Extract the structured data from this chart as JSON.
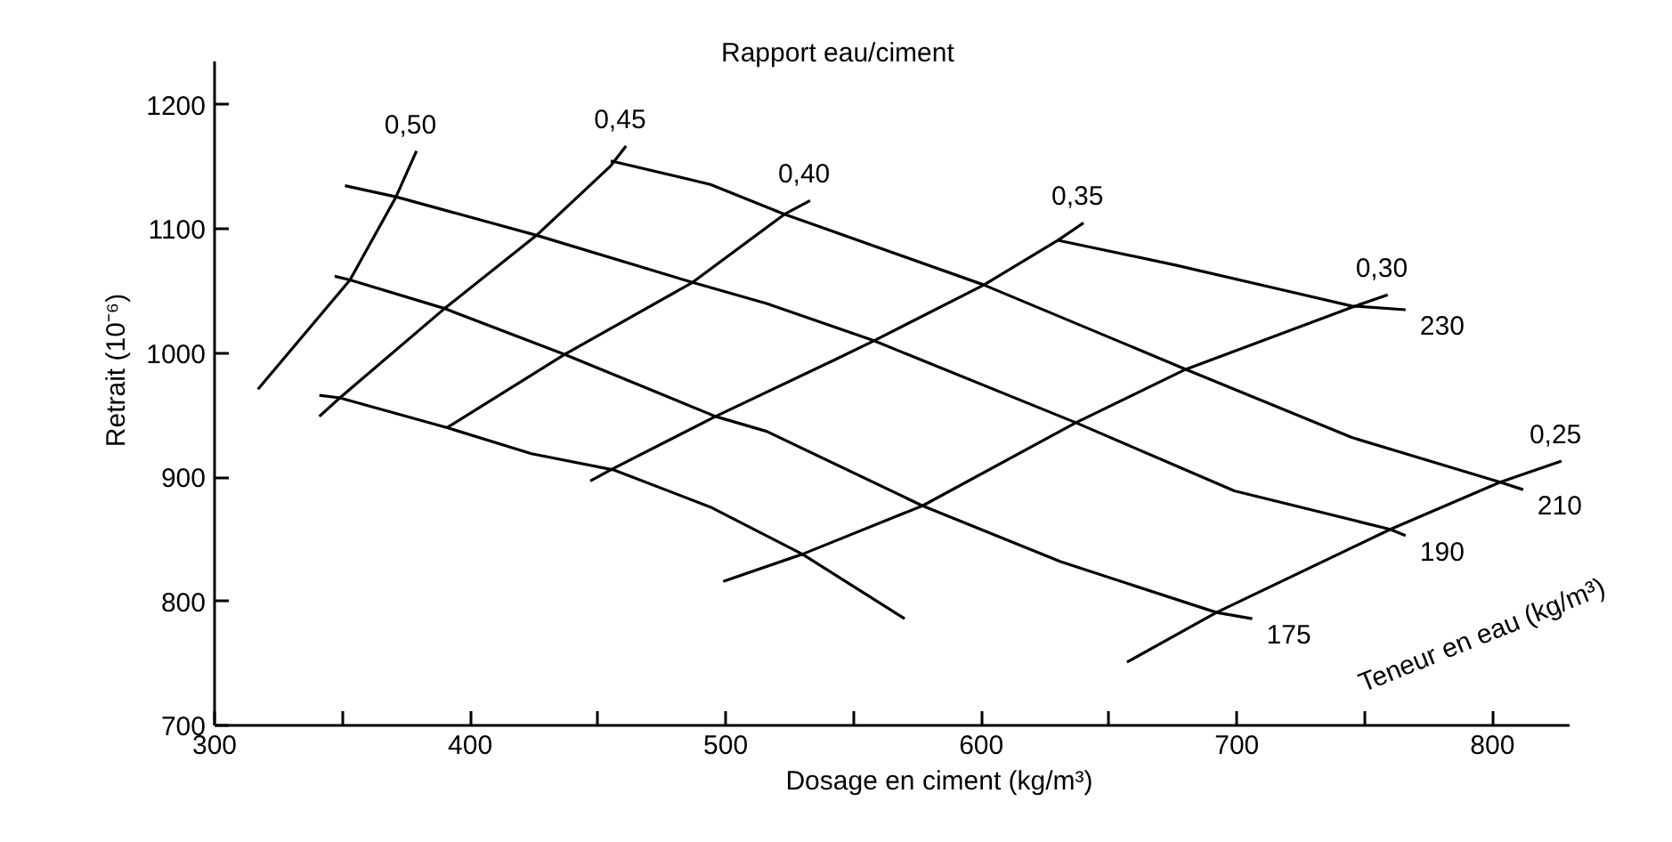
{
  "chart_data": {
    "type": "line",
    "xlabel": "Dosage en ciment (kg/m³)",
    "ylabel": "Retrait (10⁻⁶)",
    "annotations": [
      "Rapport eau/ciment",
      "Teneur en eau (kg/m³)"
    ],
    "xlim": [
      300,
      830
    ],
    "ylim": [
      700,
      1235
    ],
    "xticks": [
      300,
      {
        "value": 350,
        "label": null
      },
      400,
      {
        "value": 450,
        "label": null
      },
      500,
      {
        "value": 550,
        "label": null
      },
      600,
      {
        "value": 650,
        "label": null
      },
      700,
      {
        "value": 750,
        "label": null
      },
      800
    ],
    "yticks": [
      700,
      800,
      900,
      1000,
      1100,
      1200
    ],
    "grid": false,
    "legend": false,
    "marker": "none",
    "line_style": "solid",
    "series": [
      {
        "name": "0,50",
        "color": "#000000",
        "x": [
          317,
          353,
          371,
          379
        ],
        "values": [
          971,
          1059,
          1126,
          1163
        ]
      },
      {
        "name": "0,45",
        "color": "#000000",
        "x": [
          341,
          349,
          390,
          426,
          455,
          461
        ],
        "values": [
          949,
          964,
          1036,
          1095,
          1151,
          1167
        ]
      },
      {
        "name": "0,40",
        "color": "#000000",
        "x": [
          391,
          437,
          487,
          523,
          533
        ],
        "values": [
          940,
          999,
          1057,
          1112,
          1123
        ]
      },
      {
        "name": "0,35",
        "color": "#000000",
        "x": [
          447,
          455,
          496,
          543,
          558,
          601,
          630,
          640
        ],
        "values": [
          897,
          906,
          949,
          995,
          1010,
          1055,
          1091,
          1105
        ]
      },
      {
        "name": "0,30",
        "color": "#000000",
        "x": [
          499,
          530,
          577,
          637,
          680,
          745,
          759
        ],
        "values": [
          816,
          838,
          877,
          944,
          987,
          1037,
          1047
        ]
      },
      {
        "name": "0,25",
        "color": "#000000",
        "x": [
          657,
          692,
          760,
          803,
          827
        ],
        "values": [
          751,
          791,
          858,
          896,
          913
        ]
      },
      {
        "name": "230",
        "color": "#000000",
        "x": [
          630,
          676,
          722,
          745,
          766
        ],
        "values": [
          1091,
          1071,
          1049,
          1038,
          1035
        ]
      },
      {
        "name": "210",
        "color": "#000000",
        "x": [
          455,
          494,
          523,
          601,
          680,
          745,
          803,
          812
        ],
        "values": [
          1155,
          1136,
          1112,
          1055,
          987,
          932,
          896,
          890
        ]
      },
      {
        "name": "190",
        "color": "#000000",
        "x": [
          351,
          371,
          426,
          487,
          516,
          558,
          637,
          699,
          760,
          766
        ],
        "values": [
          1135,
          1126,
          1095,
          1057,
          1040,
          1010,
          944,
          889,
          858,
          853
        ]
      },
      {
        "name": "175",
        "color": "#000000",
        "x": [
          347,
          353,
          390,
          437,
          496,
          516,
          577,
          631,
          692,
          706
        ],
        "values": [
          1062,
          1059,
          1036,
          999,
          949,
          937,
          877,
          832,
          791,
          786
        ]
      },
      {
        "color": "#000000",
        "x": [
          341,
          349,
          391,
          424,
          456,
          494,
          530,
          570
        ],
        "values": [
          966,
          964,
          940,
          919,
          906,
          876,
          838,
          786
        ]
      }
    ]
  }
}
